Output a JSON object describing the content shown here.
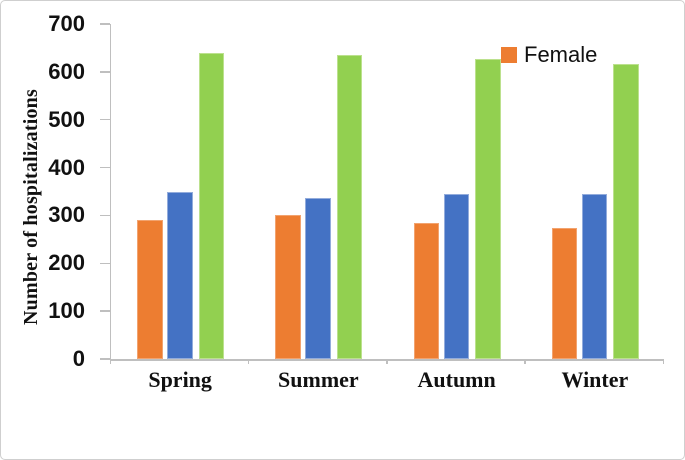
{
  "figure": {
    "background": "#ffffff",
    "border_color": "#cfcfcf"
  },
  "chart_data": {
    "type": "bar",
    "title": "",
    "xlabel": "",
    "ylabel": "Number of hospitalizations",
    "categories": [
      "Spring",
      "Summer",
      "Autumn",
      "Winter"
    ],
    "series": [
      {
        "name": "Female",
        "color": "#ED7D31",
        "border_color": "#F2A36F",
        "values": [
          290,
          300,
          285,
          273
        ]
      },
      {
        "name": "",
        "color": "#4472C4",
        "border_color": "#93ACDC",
        "values": [
          350,
          337,
          344,
          345
        ]
      },
      {
        "name": "",
        "color": "#92D050",
        "border_color": "#BCE18E",
        "values": [
          639,
          635,
          626,
          616
        ]
      }
    ],
    "ylim": [
      0,
      700
    ],
    "ytick_step": 100,
    "yticks": [
      "0",
      "100",
      "200",
      "300",
      "400",
      "500",
      "600",
      "700"
    ],
    "grid": false,
    "axis_color": "#BFBFBF",
    "legend": {
      "position": "top-right-inside",
      "entries": [
        {
          "label": "Female",
          "color": "#ED7D31"
        }
      ]
    }
  }
}
